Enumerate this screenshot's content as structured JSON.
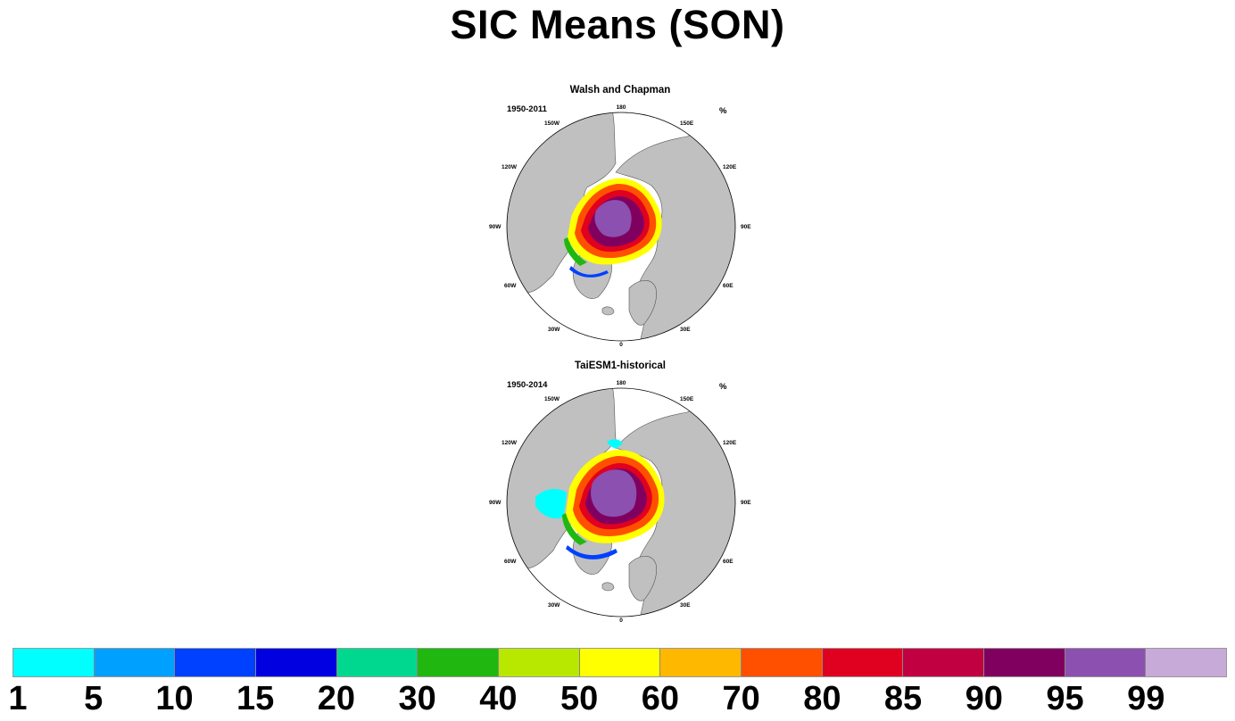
{
  "title": "SIC Means (SON)",
  "panels": [
    {
      "title": "Walsh and Chapman",
      "period": "1950-2011",
      "units": "%"
    },
    {
      "title": "TaiESM1-historical",
      "period": "1950-2014",
      "units": "%"
    }
  ],
  "longitude_labels": {
    "top": "180",
    "bottom": "0",
    "left": "90W",
    "right": "90E",
    "upper_left_1": "150W",
    "upper_left_2": "120W",
    "upper_right_1": "150E",
    "upper_right_2": "120E",
    "lower_left_1": "60W",
    "lower_left_2": "30W",
    "lower_right_1": "60E",
    "lower_right_2": "30E"
  },
  "colorbar": {
    "labels": [
      "1",
      "5",
      "10",
      "15",
      "20",
      "30",
      "40",
      "50",
      "60",
      "70",
      "80",
      "85",
      "90",
      "95",
      "99"
    ],
    "colors": [
      "#00ffff",
      "#00a0ff",
      "#0040ff",
      "#0000e0",
      "#00d890",
      "#20b810",
      "#b8e800",
      "#ffff00",
      "#ffb800",
      "#ff5000",
      "#e00020",
      "#c00040",
      "#800060",
      "#8c50b0",
      "#c8aad8"
    ]
  },
  "colors": {
    "land": "#c0c0c0",
    "ocean": "#ffffff",
    "coast": "#555555"
  }
}
